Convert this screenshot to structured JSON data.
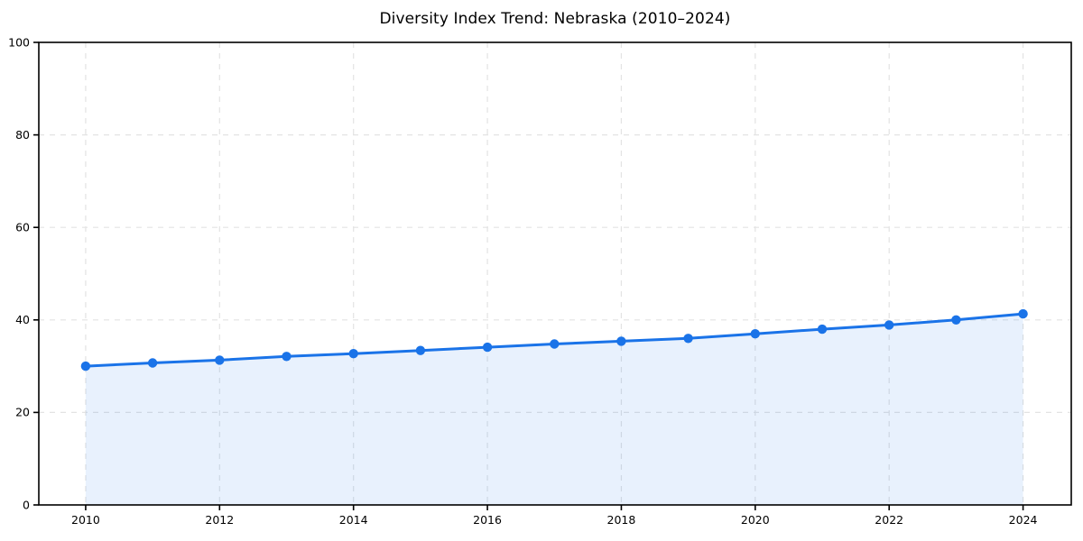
{
  "page": {
    "background": "#ffffff"
  },
  "chart_data": {
    "type": "line",
    "title": "Diversity Index Trend: Nebraska (2010–2024)",
    "x": [
      2010,
      2011,
      2012,
      2013,
      2014,
      2015,
      2016,
      2017,
      2018,
      2019,
      2020,
      2021,
      2022,
      2023,
      2024
    ],
    "series": [
      {
        "name": "Diversity Index",
        "values": [
          30.0,
          30.7,
          31.3,
          32.1,
          32.7,
          33.4,
          34.1,
          34.8,
          35.4,
          36.0,
          37.0,
          38.0,
          38.9,
          40.0,
          41.3
        ]
      }
    ],
    "xticks": [
      2010,
      2012,
      2014,
      2016,
      2018,
      2020,
      2022,
      2024
    ],
    "yticks": [
      0,
      20,
      40,
      60,
      80,
      100
    ],
    "xlim": [
      2009.3,
      2024.72
    ],
    "ylim": [
      0,
      100
    ],
    "grid": true,
    "grid_style": "dashed",
    "legend": "none",
    "area_fill": true,
    "marker": "circle",
    "colors": {
      "line": "#1a73e8",
      "marker": "#1a73e8",
      "area_fill": "rgba(26,115,232,0.10)",
      "grid": "#e3e3e3",
      "spine": "#000000",
      "tick_label": "#000000",
      "title": "#000000"
    }
  }
}
